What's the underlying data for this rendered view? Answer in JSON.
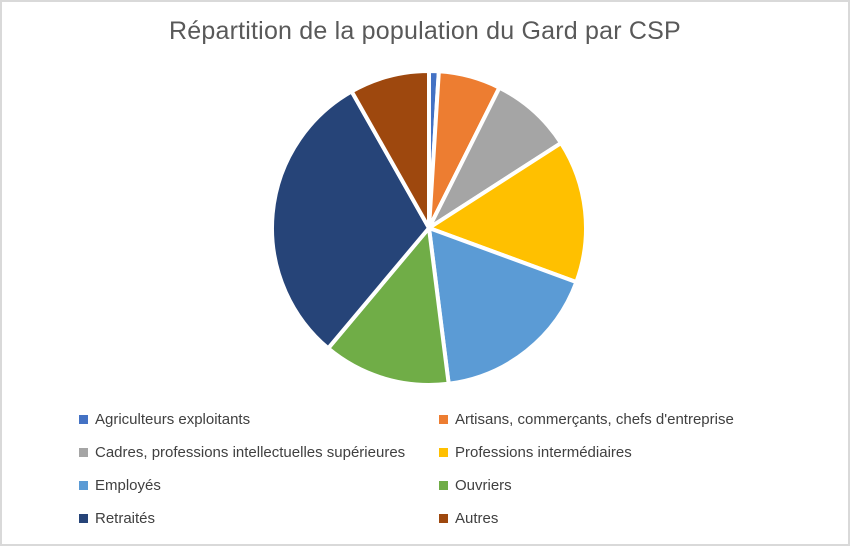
{
  "chart_data": {
    "type": "pie",
    "title": "Répartition de la population du Gard par CSP",
    "categories": [
      "Agriculteurs exploitants",
      "Artisans, commerçants, chefs d'entreprise",
      "Cadres, professions intellectuelles supérieures",
      "Professions intermédiaires",
      "Employés",
      "Ouvriers",
      "Retraités",
      "Autres"
    ],
    "values": [
      1.0,
      6.4,
      8.5,
      14.7,
      17.4,
      13.1,
      30.7,
      8.2
    ],
    "values_note": "percent of population, estimated from slice angles (no data labels shown)",
    "colors": [
      "#4472C4",
      "#ED7D31",
      "#A5A5A5",
      "#FFC000",
      "#5B9BD5",
      "#70AD47",
      "#264478",
      "#9E480E"
    ],
    "start_angle_deg": 0,
    "direction": "clockwise",
    "slice_border_color": "#FFFFFF",
    "legend_position": "bottom",
    "legend_columns": 2,
    "title_color": "#595959",
    "legend_text_color": "#404040",
    "background_color": "#FFFFFF",
    "frame_border_color": "#D9D9D9"
  }
}
